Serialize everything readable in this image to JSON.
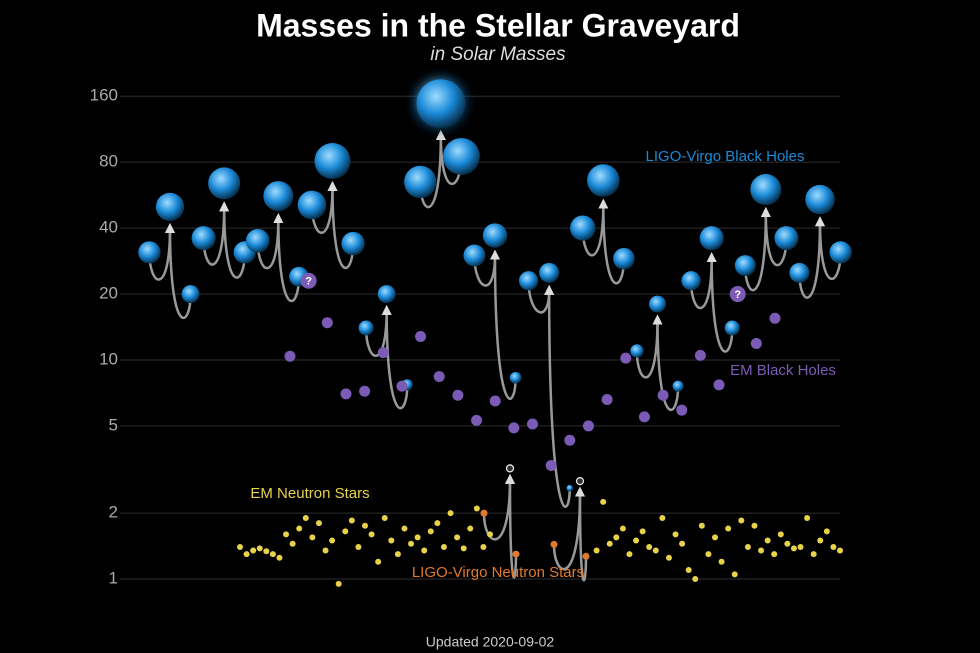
{
  "chart_data": {
    "type": "scatter",
    "title": "Masses in the Stellar Graveyard",
    "subtitle": "in Solar Masses",
    "note": "Updated 2020-09-02",
    "log_scale": true,
    "grid": true,
    "ylim": [
      0.85,
      200
    ],
    "yticks": [
      1,
      2,
      5,
      10,
      20,
      40,
      80,
      160
    ],
    "series": [
      {
        "name": "LIGO-Virgo Black Holes",
        "color": "#1b8ad8",
        "mergers": [
          [
            31,
            20,
            50
          ],
          [
            36,
            31,
            64
          ],
          [
            35,
            24,
            56
          ],
          [
            51,
            34,
            81
          ],
          [
            14,
            7.7,
            20
          ],
          [
            65,
            85,
            148
          ],
          [
            30,
            8.3,
            37
          ],
          [
            23,
            2.6,
            25
          ],
          [
            40,
            29,
            66
          ],
          [
            11,
            7.6,
            18
          ],
          [
            23,
            14,
            36
          ],
          [
            27,
            36,
            60
          ],
          [
            25,
            31,
            54
          ]
        ]
      },
      {
        "name": "EM Black Holes",
        "color": "#7b5bb5",
        "values": [
          10.4,
          23,
          14.8,
          7.0,
          7.2,
          10.8,
          7.6,
          12.8,
          8.4,
          6.9,
          5.3,
          6.5,
          4.9,
          5.1,
          3.3,
          4.3,
          5.0,
          6.6,
          10.2,
          5.5,
          6.9,
          5.9,
          10.5,
          7.7,
          20,
          11.9,
          15.5
        ],
        "value_labels": [
          null,
          "?",
          null,
          null,
          null,
          null,
          null,
          null,
          null,
          null,
          null,
          null,
          null,
          null,
          null,
          null,
          null,
          null,
          null,
          null,
          null,
          null,
          null,
          null,
          "?",
          null,
          null
        ]
      },
      {
        "name": "EM Neutron Stars",
        "color": "#e8d24a",
        "values": [
          1.4,
          1.3,
          1.35,
          1.38,
          1.34,
          1.3,
          1.25,
          1.6,
          1.45,
          1.7,
          1.9,
          1.55,
          1.8,
          1.35,
          1.5,
          0.95,
          1.65,
          1.85,
          1.4,
          1.75,
          1.6,
          1.2,
          1.9,
          1.5,
          1.3,
          1.7,
          1.45,
          1.55,
          1.35,
          1.65,
          1.8,
          1.4,
          2.0,
          1.55,
          1.38,
          1.7,
          2.1,
          1.4,
          1.6,
          1.35,
          2.25,
          1.45,
          1.55,
          1.7,
          1.3,
          1.5,
          1.65,
          1.4,
          1.35,
          1.9,
          1.25,
          1.6,
          1.45,
          1.1,
          1.0,
          1.75,
          1.3,
          1.55,
          1.2,
          1.7,
          1.05,
          1.85,
          1.4,
          1.75,
          1.35,
          1.5,
          1.3,
          1.6,
          1.45,
          1.38,
          1.4,
          1.9,
          1.3,
          1.5,
          1.65,
          1.4,
          1.35
        ]
      },
      {
        "name": "LIGO-Virgo Neutron Stars",
        "color": "#e07a2a",
        "mergers": [
          [
            2.0,
            1.3,
            3.2
          ],
          [
            1.44,
            1.27,
            2.8
          ]
        ]
      }
    ]
  }
}
